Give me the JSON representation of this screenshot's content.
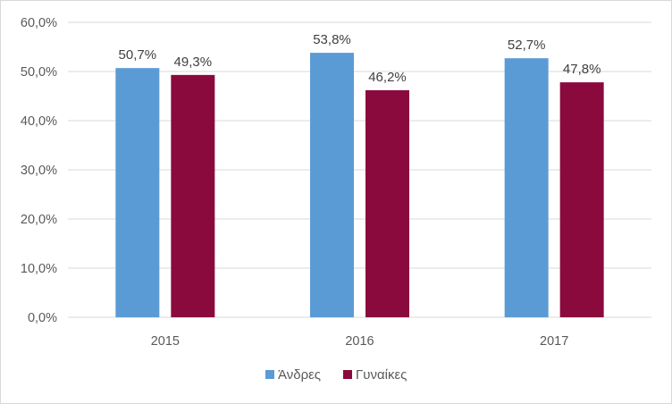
{
  "chart_data": {
    "type": "bar",
    "categories": [
      "2015",
      "2016",
      "2017"
    ],
    "series": [
      {
        "name": "Άνδρες",
        "values": [
          50.7,
          53.8,
          52.7
        ],
        "labels": [
          "50,7%",
          "53,8%",
          "52,7%"
        ],
        "color": "#5b9bd5"
      },
      {
        "name": "Γυναίκες",
        "values": [
          49.3,
          46.2,
          47.8
        ],
        "labels": [
          "49,3%",
          "46,2%",
          "47,8%"
        ],
        "color": "#8b0a3d"
      }
    ],
    "title": "",
    "xlabel": "",
    "ylabel": "",
    "ylim": [
      0,
      60
    ],
    "yticks": [
      0,
      10,
      20,
      30,
      40,
      50,
      60
    ],
    "ytick_labels": [
      "0,0%",
      "10,0%",
      "20,0%",
      "30,0%",
      "40,0%",
      "50,0%",
      "60,0%"
    ],
    "grid": true,
    "gridline_color": "#d9d9d9",
    "legend_position": "bottom"
  }
}
